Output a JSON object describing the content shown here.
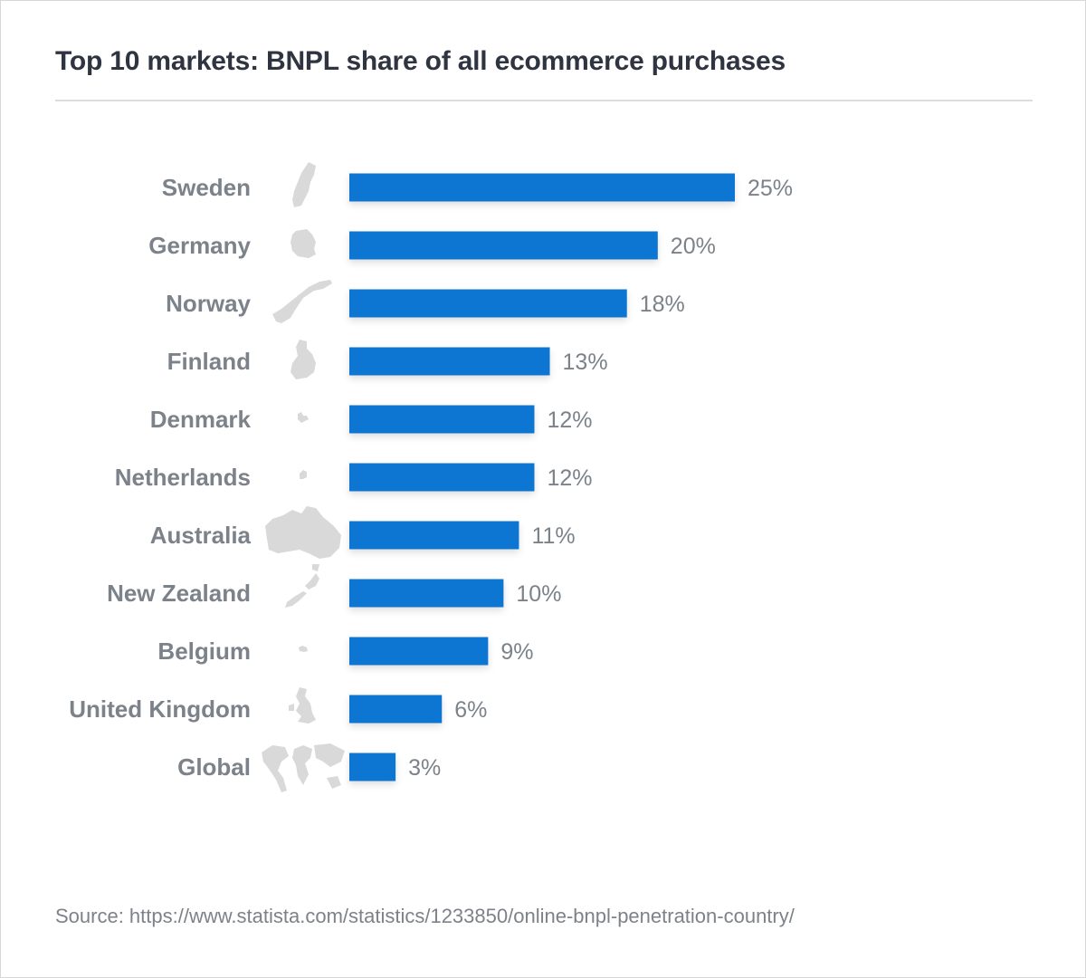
{
  "title": "Top 10 markets: BNPL share of all ecommerce purchases",
  "source": "Source: https://www.statista.com/statistics/1233850/online-bnpl-penetration-country/",
  "colors": {
    "bar": "#0a74d2",
    "category_label": "#7c828a",
    "value_label": "#7c828a",
    "map_silhouette": "#d9d9d9",
    "title": "#2f3540"
  },
  "chart_data": {
    "type": "bar",
    "orientation": "horizontal",
    "categories": [
      "Sweden",
      "Germany",
      "Norway",
      "Finland",
      "Denmark",
      "Netherlands",
      "Australia",
      "New Zealand",
      "Belgium",
      "United Kingdom",
      "Global"
    ],
    "values": [
      25,
      20,
      18,
      13,
      12,
      12,
      11,
      10,
      9,
      6,
      3
    ],
    "value_labels": [
      "25%",
      "20%",
      "18%",
      "13%",
      "12%",
      "12%",
      "11%",
      "10%",
      "9%",
      "6%",
      "3%"
    ],
    "icons": [
      "sweden-map-icon",
      "germany-map-icon",
      "norway-map-icon",
      "finland-map-icon",
      "denmark-map-icon",
      "netherlands-map-icon",
      "australia-map-icon",
      "new-zealand-map-icon",
      "belgium-map-icon",
      "united-kingdom-map-icon",
      "world-map-icon"
    ],
    "title": "Top 10 markets: BNPL share of all ecommerce purchases",
    "xlabel": "",
    "ylabel": "",
    "xlim": [
      0,
      25
    ],
    "grid": false,
    "legend": "none"
  }
}
